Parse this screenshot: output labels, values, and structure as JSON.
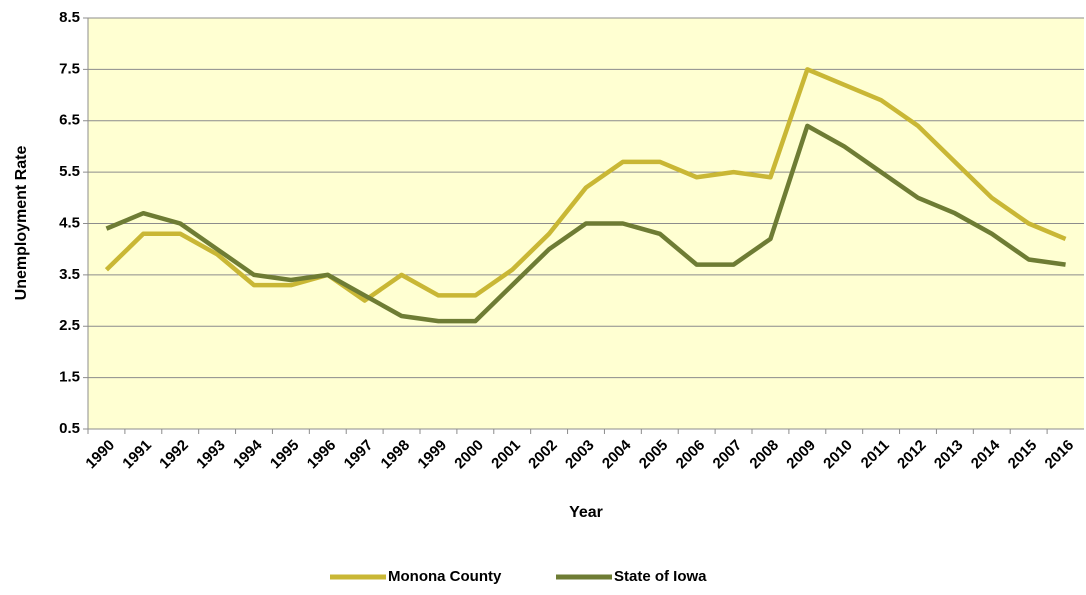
{
  "chart_data": {
    "type": "line",
    "x_label": "Year",
    "y_label": "Unemployment Rate",
    "categories": [
      "1990",
      "1991",
      "1992",
      "1993",
      "1994",
      "1995",
      "1996",
      "1997",
      "1998",
      "1999",
      "2000",
      "2001",
      "2002",
      "2003",
      "2004",
      "2005",
      "2006",
      "2007",
      "2008",
      "2009",
      "2010",
      "2011",
      "2012",
      "2013",
      "2014",
      "2015",
      "2016"
    ],
    "series": [
      {
        "name": "Monona County",
        "color": "#c9b735",
        "values": [
          3.6,
          4.3,
          4.3,
          3.9,
          3.3,
          3.3,
          3.5,
          3.0,
          3.5,
          3.1,
          3.1,
          3.6,
          4.3,
          5.2,
          5.7,
          5.7,
          5.4,
          5.5,
          5.4,
          7.5,
          7.2,
          6.9,
          6.4,
          5.7,
          5.0,
          4.5,
          4.2
        ]
      },
      {
        "name": "State of Iowa",
        "color": "#6e7c34",
        "values": [
          4.4,
          4.7,
          4.5,
          4.0,
          3.5,
          3.4,
          3.5,
          3.1,
          2.7,
          2.6,
          2.6,
          3.3,
          4.0,
          4.5,
          4.5,
          4.3,
          3.7,
          3.7,
          4.2,
          6.4,
          6.0,
          5.5,
          5.0,
          4.7,
          4.3,
          3.8,
          3.7
        ]
      }
    ],
    "ylim": [
      0.5,
      8.5
    ],
    "yticks": [
      0.5,
      1.5,
      2.5,
      3.5,
      4.5,
      5.5,
      6.5,
      7.5,
      8.5
    ],
    "grid": true,
    "legend": "bottom",
    "background": "#ffffd2"
  }
}
